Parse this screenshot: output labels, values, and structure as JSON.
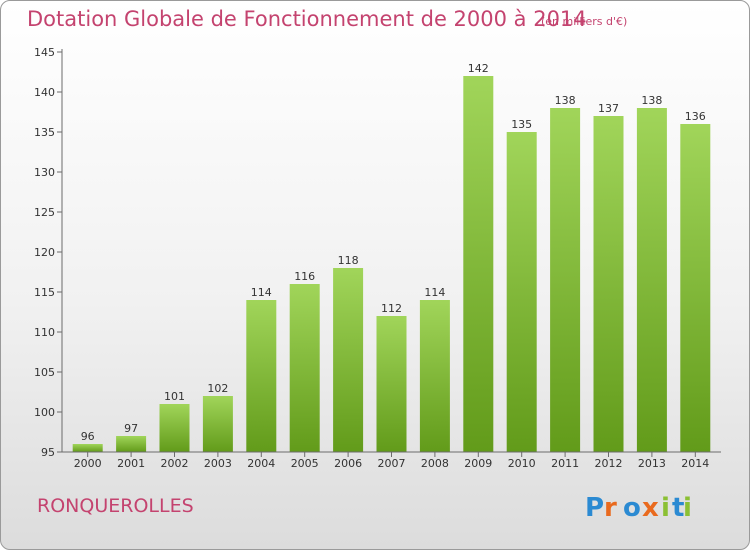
{
  "title": "Dotation Globale de Fonctionnement de 2000 à 2014",
  "subtitle": "(en milliers d'€)",
  "place": "RONQUEROLLES",
  "logo_text": "Proxiti",
  "colors": {
    "title": "#c4436f",
    "bar_light": "#a1d55a",
    "bar_dark": "#629b1a",
    "logo_letters": [
      "#2b8ad2",
      "#e96a1e",
      "#2b8ad2",
      "#e96a1e",
      "#8bc034",
      "#2b8ad2",
      "#8bc034"
    ]
  },
  "chart_data": {
    "type": "bar",
    "categories": [
      "2000",
      "2001",
      "2002",
      "2003",
      "2004",
      "2005",
      "2006",
      "2007",
      "2008",
      "2009",
      "2010",
      "2011",
      "2012",
      "2013",
      "2014"
    ],
    "values": [
      96,
      97,
      101,
      102,
      114,
      116,
      118,
      112,
      114,
      142,
      135,
      138,
      137,
      138,
      136
    ],
    "ylim": [
      95,
      145
    ],
    "yticks": [
      95,
      100,
      105,
      110,
      115,
      120,
      125,
      130,
      135,
      140,
      145
    ],
    "xlabel": "",
    "ylabel": "",
    "grid": false
  }
}
